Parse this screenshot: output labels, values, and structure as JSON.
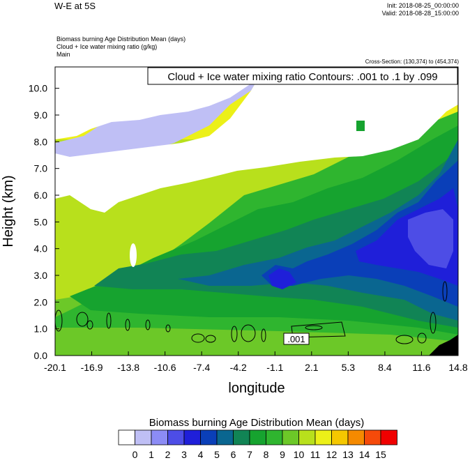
{
  "header": {
    "title": "W-E at 5S",
    "init": "Init: 2018-08-25_00:00:00",
    "valid": "Valid: 2018-08-28_15:00:00",
    "desc_line1": "Biomass burning Age Distribution Mean   (days)",
    "desc_line2": "Cloud + Ice water mixing ratio   (g/kg)",
    "desc_line3": "Main",
    "cross_section": "Cross-Section: (130,374) to (454,374)"
  },
  "chart_data": {
    "type": "heatmap",
    "title": "W-E at 5S",
    "xlabel": "longitude",
    "ylabel": "Height (km)",
    "x_ticks": [
      "-20.1",
      "-16.9",
      "-13.8",
      "-10.6",
      "-7.4",
      "-4.2",
      "-1.1",
      "2.1",
      "5.3",
      "8.4",
      "11.6",
      "14.8"
    ],
    "y_ticks": [
      "0.0",
      "1.0",
      "2.0",
      "3.0",
      "4.0",
      "5.0",
      "6.0",
      "7.0",
      "8.0",
      "9.0",
      "10.0"
    ],
    "xlim": [
      -20.1,
      14.8
    ],
    "ylim": [
      0,
      10.8
    ],
    "contour_label": "Cloud + Ice water mixing ratio Contours: .001 to .1 by .099",
    "contour_value_label": ".001",
    "colorbar": {
      "title": "Biomass burning Age Distribution Mean  (days)",
      "labels": [
        "0",
        "1",
        "2",
        "3",
        "4",
        "5",
        "6",
        "7",
        "8",
        "9",
        "10",
        "11",
        "12",
        "13",
        "14",
        "15"
      ],
      "colors": [
        "#ffffff",
        "#bfbff5",
        "#8c8cf5",
        "#4d4de6",
        "#1f1fd9",
        "#0a3fb8",
        "#0a6690",
        "#118455",
        "#16a32f",
        "#2fb52f",
        "#6cc828",
        "#b8e01c",
        "#ecf018",
        "#f5c800",
        "#f58a00",
        "#f54a0a",
        "#f00000"
      ]
    }
  }
}
